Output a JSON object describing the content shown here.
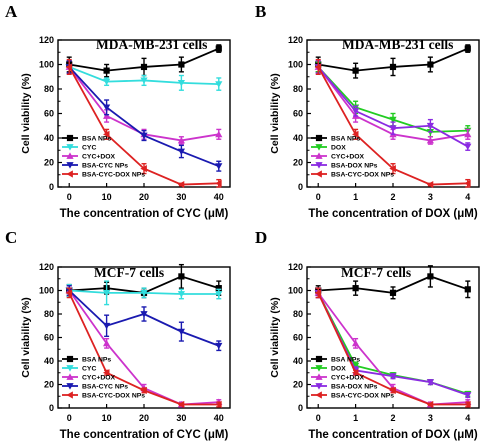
{
  "chart_data": [
    {
      "type": "line",
      "panel": "A",
      "title": "MDA-MB-231 cells",
      "xlabel": "The concentration of CYC  (μM)",
      "ylabel": "Cell viability (%)",
      "x": [
        0,
        10,
        20,
        30,
        40
      ],
      "xlim": [
        -3,
        43
      ],
      "ylim": [
        0,
        120
      ],
      "xticks": [
        0,
        10,
        20,
        30,
        40
      ],
      "yticks": [
        0,
        20,
        40,
        60,
        80,
        100,
        120
      ],
      "legend_position": "lower-left",
      "series": [
        {
          "name": "BSA NPs",
          "color": "#000000",
          "marker": "square",
          "values": [
            100,
            95,
            98,
            100,
            113
          ],
          "errors": [
            6,
            5,
            7,
            6,
            3
          ]
        },
        {
          "name": "CYC",
          "color": "#33dddd",
          "marker": "triangle-down",
          "values": [
            98,
            86,
            87,
            85,
            84
          ],
          "errors": [
            5,
            3,
            4,
            6,
            5
          ]
        },
        {
          "name": "CYC+DOX",
          "color": "#cc33cc",
          "marker": "triangle-up",
          "values": [
            98,
            58,
            43,
            38,
            43
          ],
          "errors": [
            5,
            5,
            4,
            3,
            4
          ]
        },
        {
          "name": "BSA-CYC NPs",
          "color": "#1a1ab0",
          "marker": "triangle-down",
          "values": [
            98,
            65,
            42,
            29,
            17
          ],
          "errors": [
            5,
            6,
            4,
            5,
            4
          ]
        },
        {
          "name": "BSA-CYC-DOX NPs",
          "color": "#dd2222",
          "marker": "triangle-left",
          "values": [
            98,
            43,
            15,
            2,
            3
          ],
          "errors": [
            6,
            4,
            4,
            1,
            3
          ]
        }
      ]
    },
    {
      "type": "line",
      "panel": "B",
      "title": "MDA-MB-231 cells",
      "xlabel": "The concentration of DOX  (μM)",
      "ylabel": "Cell viability (%)",
      "x": [
        0,
        1,
        2,
        3,
        4
      ],
      "xlim": [
        -0.3,
        4.3
      ],
      "ylim": [
        0,
        120
      ],
      "xticks": [
        0,
        1,
        2,
        3,
        4
      ],
      "yticks": [
        0,
        20,
        40,
        60,
        80,
        100,
        120
      ],
      "legend_position": "lower-left",
      "series": [
        {
          "name": "BSA NPs",
          "color": "#000000",
          "marker": "square",
          "values": [
            100,
            95,
            98,
            100,
            113
          ],
          "errors": [
            6,
            6,
            7,
            6,
            3
          ]
        },
        {
          "name": "DOX",
          "color": "#22cc22",
          "marker": "triangle-down",
          "values": [
            98,
            65,
            55,
            45,
            46
          ],
          "errors": [
            4,
            5,
            5,
            4,
            4
          ]
        },
        {
          "name": "CYC+DOX",
          "color": "#cc33cc",
          "marker": "triangle-up",
          "values": [
            98,
            58,
            43,
            38,
            43
          ],
          "errors": [
            5,
            5,
            4,
            3,
            4
          ]
        },
        {
          "name": "BSA-DOX NPs",
          "color": "#8a2be2",
          "marker": "triangle-down",
          "values": [
            98,
            62,
            48,
            50,
            33
          ],
          "errors": [
            5,
            4,
            5,
            5,
            3
          ]
        },
        {
          "name": "BSA-CYC-DOX NPs",
          "color": "#dd2222",
          "marker": "triangle-left",
          "values": [
            98,
            43,
            15,
            2,
            3
          ],
          "errors": [
            6,
            4,
            4,
            1,
            3
          ]
        }
      ]
    },
    {
      "type": "line",
      "panel": "C",
      "title": "MCF-7 cells",
      "xlabel": "The concentration of CYC (μM)",
      "ylabel": "Cell viability (%)",
      "x": [
        0,
        10,
        20,
        30,
        40
      ],
      "xlim": [
        -3,
        43
      ],
      "ylim": [
        0,
        120
      ],
      "xticks": [
        0,
        10,
        20,
        30,
        40
      ],
      "yticks": [
        0,
        20,
        40,
        60,
        80,
        100,
        120
      ],
      "legend_position": "lower-left",
      "series": [
        {
          "name": "BSA NPs",
          "color": "#000000",
          "marker": "square",
          "values": [
            100,
            102,
            98,
            112,
            102
          ],
          "errors": [
            5,
            5,
            4,
            10,
            6
          ]
        },
        {
          "name": "CYC",
          "color": "#33dddd",
          "marker": "triangle-down",
          "values": [
            100,
            98,
            98,
            97,
            97
          ],
          "errors": [
            5,
            10,
            4,
            4,
            4
          ]
        },
        {
          "name": "CYC+DOX",
          "color": "#cc33cc",
          "marker": "triangle-up",
          "values": [
            100,
            55,
            17,
            3,
            5
          ],
          "errors": [
            4,
            4,
            3,
            2,
            2
          ]
        },
        {
          "name": "BSA-CYC NPs",
          "color": "#1a1ab0",
          "marker": "triangle-down",
          "values": [
            100,
            70,
            80,
            65,
            53
          ],
          "errors": [
            4,
            9,
            6,
            8,
            4
          ]
        },
        {
          "name": "BSA-CYC-DOX NPs",
          "color": "#dd2222",
          "marker": "triangle-left",
          "values": [
            98,
            30,
            15,
            3,
            3
          ],
          "errors": [
            4,
            2,
            2,
            1,
            2
          ]
        }
      ]
    },
    {
      "type": "line",
      "panel": "D",
      "title": "MCF-7 cells",
      "xlabel": "The concentration of DOX (μM)",
      "ylabel": "Cell viability (%)",
      "x": [
        0,
        1,
        2,
        3,
        4
      ],
      "xlim": [
        -0.3,
        4.3
      ],
      "ylim": [
        0,
        120
      ],
      "xticks": [
        0,
        1,
        2,
        3,
        4
      ],
      "yticks": [
        0,
        20,
        40,
        60,
        80,
        100,
        120
      ],
      "legend_position": "lower-left",
      "series": [
        {
          "name": "BSA NPs",
          "color": "#000000",
          "marker": "square",
          "values": [
            100,
            102,
            98,
            112,
            101
          ],
          "errors": [
            4,
            6,
            5,
            9,
            7
          ]
        },
        {
          "name": "DOX",
          "color": "#22cc22",
          "marker": "triangle-down",
          "values": [
            98,
            36,
            28,
            22,
            12
          ],
          "errors": [
            4,
            3,
            2,
            2,
            2
          ]
        },
        {
          "name": "CYC+DOX",
          "color": "#cc33cc",
          "marker": "triangle-up",
          "values": [
            98,
            55,
            17,
            3,
            5
          ],
          "errors": [
            4,
            4,
            3,
            2,
            2
          ]
        },
        {
          "name": "BSA-DOX NPs",
          "color": "#8a2be2",
          "marker": "triangle-down",
          "values": [
            98,
            32,
            27,
            22,
            11
          ],
          "errors": [
            4,
            3,
            2,
            2,
            2
          ]
        },
        {
          "name": "BSA-CYC-DOX NPs",
          "color": "#dd2222",
          "marker": "triangle-left",
          "values": [
            98,
            30,
            15,
            3,
            3
          ],
          "errors": [
            4,
            2,
            2,
            1,
            2
          ]
        }
      ]
    }
  ]
}
